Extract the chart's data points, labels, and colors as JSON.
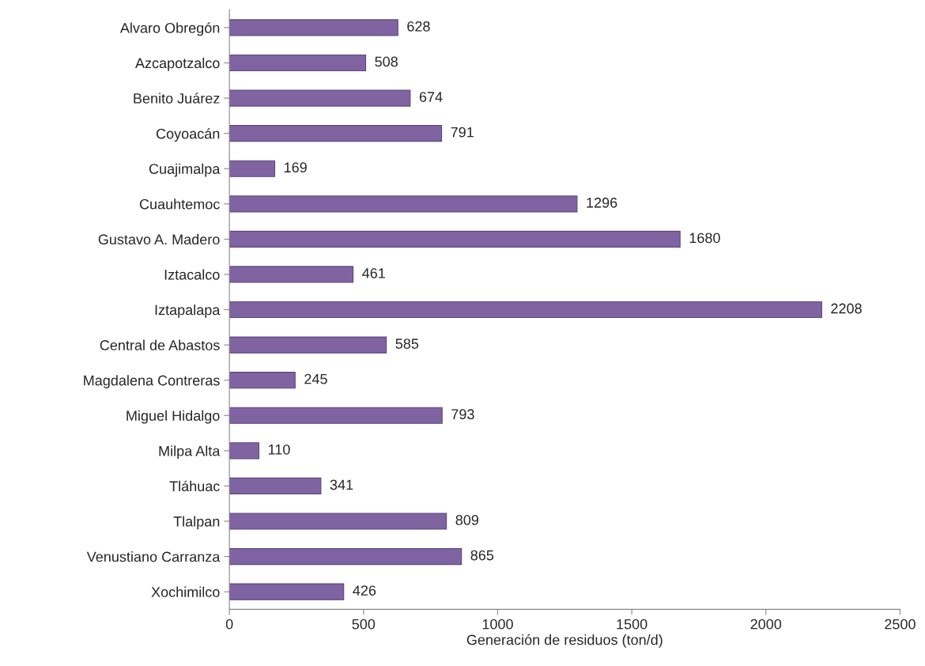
{
  "chart_data": {
    "type": "bar",
    "orientation": "horizontal",
    "xlabel": "Generación de residuos (ton/d)",
    "categories": [
      "Alvaro Obregón",
      "Azcapotzalco",
      "Benito Juárez",
      "Coyoacán",
      "Cuajimalpa",
      "Cuauhtemoc",
      "Gustavo A. Madero",
      "Iztacalco",
      "Iztapalapa",
      "Central de Abastos",
      "Magdalena Contreras",
      "Miguel Hidalgo",
      "Milpa Alta",
      "Tláhuac",
      "Tlalpan",
      "Venustiano Carranza",
      "Xochimilco"
    ],
    "values": [
      628,
      508,
      674,
      791,
      169,
      1296,
      1680,
      461,
      2208,
      585,
      245,
      793,
      110,
      341,
      809,
      865,
      426
    ],
    "color": "#8064a2",
    "xlim": [
      0,
      2500
    ],
    "xticks": [
      0,
      500,
      1000,
      1500,
      2000,
      2500
    ],
    "data_labels": true,
    "grid": false,
    "legend": false
  }
}
